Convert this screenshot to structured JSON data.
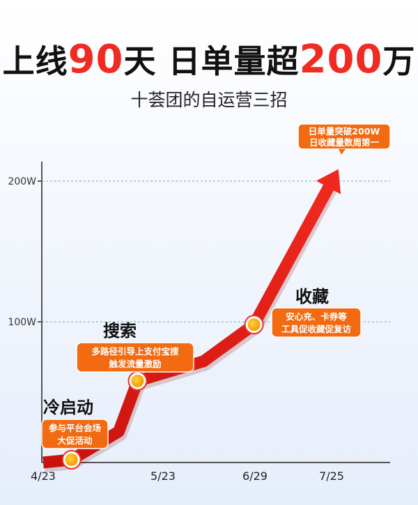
{
  "header": {
    "title_part1": "上线",
    "title_hl1": "90",
    "title_part2": "天 日单量超",
    "title_hl2": "200",
    "title_part3": "万",
    "subtitle": "十荟团的自运营三招"
  },
  "colors": {
    "accent_red": "#ef2b22",
    "callout_orange": "#f26a11",
    "marker_yellow": "#f7b500",
    "axis_gray": "#555555",
    "grid_dashed": "#6fa8c8"
  },
  "chart_data": {
    "type": "line",
    "x_ticks": [
      "4/23",
      "5/23",
      "6/29",
      "7/25"
    ],
    "y_ticks": [
      "100W",
      "200W"
    ],
    "y_unit": "W",
    "ylim": [
      0,
      205
    ],
    "grid": "dashed lines at y tick labels",
    "series": [
      {
        "x": [
          "4/23",
          "5/2",
          "5/17",
          "5/23",
          "6/13",
          "6/29",
          "7/25"
        ],
        "y": [
          0,
          2,
          22,
          58,
          72,
          98,
          205
        ]
      }
    ],
    "stages": [
      {
        "title": "冷启动",
        "lines": [
          "参与平台会场",
          "大促活动"
        ],
        "x": "5/2",
        "y": 2
      },
      {
        "title": "搜索",
        "lines": [
          "多路径引导上支付宝搜",
          "触发流量激励"
        ],
        "x": "5/23",
        "y": 58
      },
      {
        "title": "收藏",
        "lines": [
          "安心充、卡券等",
          "工具促收藏促复访"
        ],
        "x": "6/29",
        "y": 98
      }
    ],
    "peak_callout": [
      "日单量突破200W",
      "日收藏量数周第一"
    ]
  }
}
